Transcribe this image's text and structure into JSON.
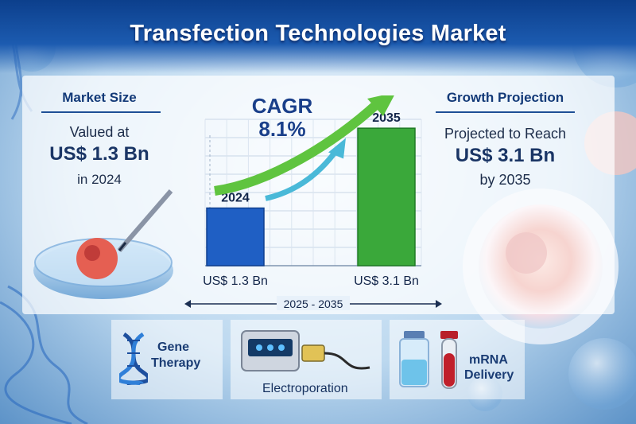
{
  "title": "Transfection Technologies Market",
  "market_size": {
    "heading": "Market Size",
    "line1": "Valued at",
    "value": "US$ 1.3 Bn",
    "line3": "in 2024"
  },
  "growth": {
    "heading": "Growth Projection",
    "line1": "Projected to Reach",
    "value": "US$ 3.1 Bn",
    "line3": "by 2035"
  },
  "cagr": {
    "label": "CAGR",
    "value": "8.1%"
  },
  "chart_data": {
    "type": "bar",
    "categories": [
      "2024",
      "2035"
    ],
    "values": [
      1.3,
      3.1
    ],
    "value_labels": [
      "US$ 1.3 Bn",
      "US$ 3.1 Bn"
    ],
    "xlabel": "2025 - 2035",
    "ylabel": "",
    "title": "",
    "ylim": [
      0,
      3.3
    ],
    "grid": true,
    "colors": [
      "#1f5fc4",
      "#3aa83a"
    ]
  },
  "applications": [
    {
      "label_line1": "Gene",
      "label_line2": "Therapy",
      "icon": "dna-icon"
    },
    {
      "label_line1": "Electroporation",
      "label_line2": "",
      "icon": "electroporation-device-icon"
    },
    {
      "label_line1": "mRNA",
      "label_line2": "Delivery",
      "icon": "vials-icon"
    }
  ],
  "colors": {
    "banner": "#0c3f8c",
    "heading": "#133a78",
    "bar_2024": "#1f5fc4",
    "bar_2035": "#3aa83a",
    "arrow": "#3fbf3a"
  }
}
